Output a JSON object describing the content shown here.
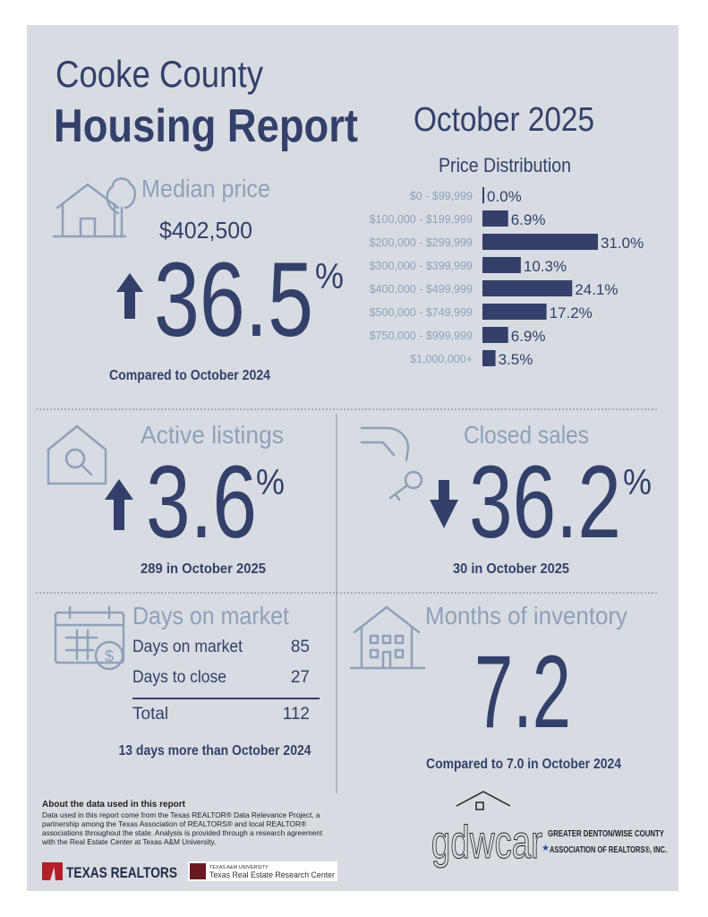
{
  "header": {
    "county": "Cooke County",
    "title": "Housing Report",
    "period": "October 2025"
  },
  "median_price": {
    "heading": "Median price",
    "price": "$402,500",
    "change": "36.5",
    "unit": "%",
    "comparison": "Compared to October 2024"
  },
  "price_distribution": {
    "title": "Price Distribution",
    "categories": [
      "$0 - $99,999",
      "$100,000 - $199,999",
      "$200,000 - $299,999",
      "$300,000 - $399,999",
      "$400,000 - $499,999",
      "$500,000 - $749,999",
      "$750,000 - $999,999",
      "$1,000,000+"
    ],
    "values": [
      0,
      6.9,
      31,
      10.3,
      24.1,
      17.2,
      6.9,
      3.5
    ],
    "value_labels": [
      "0.0%",
      "6.9%",
      "31.0%",
      "10.3%",
      "24.1%",
      "17.2%",
      "6.9%",
      "3.5%"
    ],
    "color": "#34406a"
  },
  "active_listings": {
    "heading": "Active listings",
    "change": "3.6",
    "unit": "%",
    "detail": "289 in October 2025"
  },
  "closed_sales": {
    "heading": "Closed sales",
    "change": "36.2",
    "unit": "%",
    "detail": "30 in October 2025"
  },
  "days_on_market": {
    "heading": "Days on market",
    "rows": [
      [
        "Days on market",
        "85"
      ],
      [
        "Days to close",
        "27"
      ]
    ],
    "total": [
      "Total",
      "112"
    ],
    "note": "13 days more than October 2024"
  },
  "months_of_inventory": {
    "heading": "Months of inventory",
    "value": "7.2",
    "note": "Compared to 7.0 in October 2024"
  },
  "footer": {
    "about_title": "About the data used in this report",
    "about_lines": [
      "Data used in this report come from the Texas REALTOR® Data Relevance Project, a",
      "partnership among the Texas Association of REALTORS® and local REALTOR®",
      "associations throughout the state. Analysis is provided through a research agreement",
      "with the Real Estate Center at Texas A&M University."
    ],
    "texas_realtors": "TEXAS REALTORS",
    "tamu": "TEXAS A&M UNIVERSITY",
    "research_center": "Texas Real Estate Research Center",
    "gdwcar": "gdwcar",
    "gdwcar_line1": "GREATER DENTON/WISE COUNTY",
    "gdwcar_line2": "ASSOCIATION OF REALTORS®, INC."
  }
}
